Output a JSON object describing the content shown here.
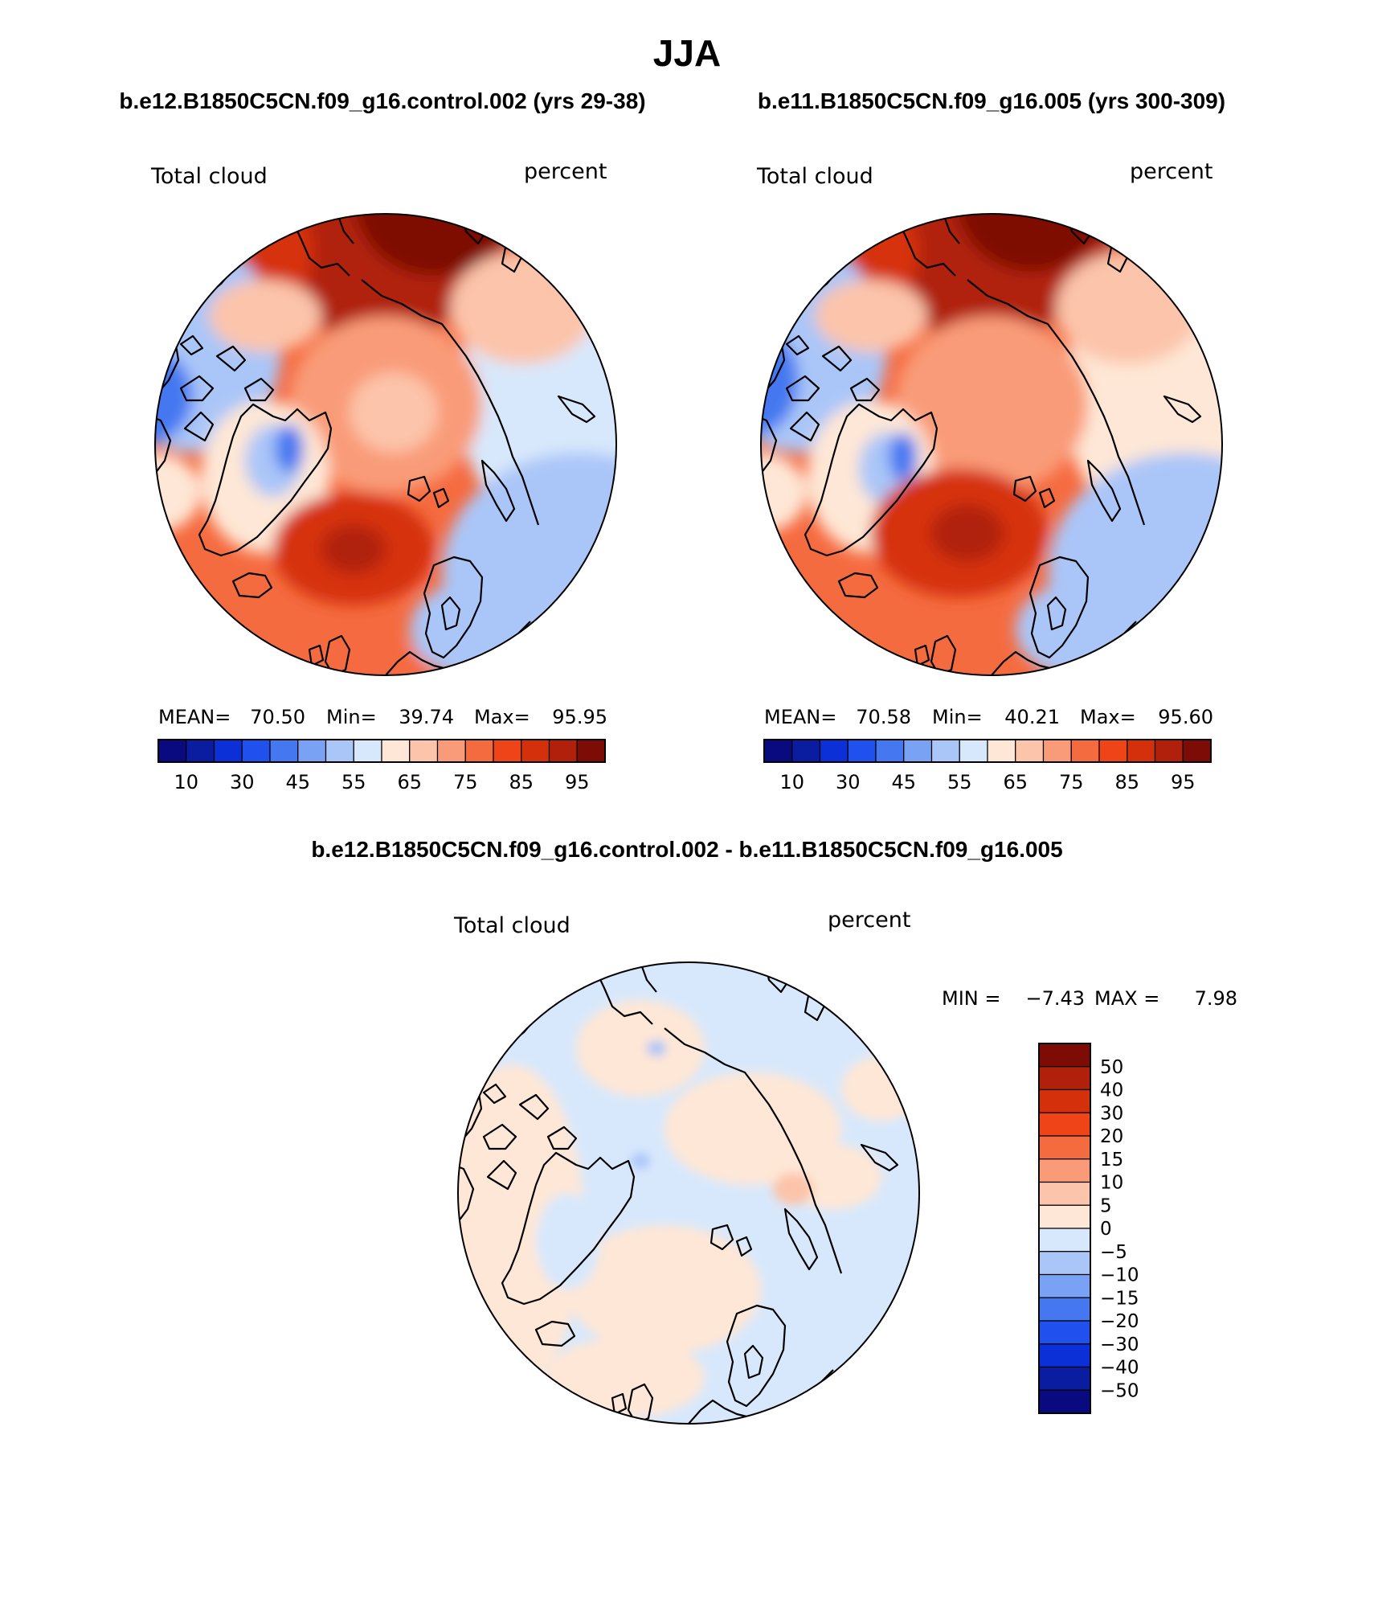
{
  "page_title": "JJA",
  "chart_data": [
    {
      "type": "heatmap",
      "title": "b.e12.B1850C5CN.f09_g16.control.002 (yrs 29-38)",
      "variable": "Total cloud",
      "units": "percent",
      "projection": "north polar stereographic",
      "stats": {
        "mean_label": "MEAN=",
        "mean": "70.50",
        "min_label": "Min=",
        "min": "39.74",
        "max_label": "Max=",
        "max": "95.95"
      },
      "colorbar": {
        "orientation": "horizontal",
        "levels": [
          10,
          20,
          30,
          40,
          45,
          50,
          55,
          60,
          65,
          70,
          75,
          80,
          85,
          90,
          95
        ],
        "tick_labels": [
          "10",
          "30",
          "45",
          "55",
          "65",
          "75",
          "85",
          "95"
        ],
        "colors": [
          "#0a0a80",
          "#0a1ca0",
          "#0b30d8",
          "#2050ee",
          "#4578f0",
          "#7aa2f4",
          "#aac6f8",
          "#d8e8fc",
          "#fee7d6",
          "#fcc4aa",
          "#f99b78",
          "#f56b40",
          "#ef4418",
          "#d5300c",
          "#b0200a",
          "#7e0c06"
        ]
      }
    },
    {
      "type": "heatmap",
      "title": "b.e11.B1850C5CN.f09_g16.005 (yrs 300-309)",
      "variable": "Total cloud",
      "units": "percent",
      "projection": "north polar stereographic",
      "stats": {
        "mean_label": "MEAN=",
        "mean": "70.58",
        "min_label": "Min=",
        "min": "40.21",
        "max_label": "Max=",
        "max": "95.60"
      },
      "colorbar": {
        "orientation": "horizontal",
        "levels": [
          10,
          20,
          30,
          40,
          45,
          50,
          55,
          60,
          65,
          70,
          75,
          80,
          85,
          90,
          95
        ],
        "tick_labels": [
          "10",
          "30",
          "45",
          "55",
          "65",
          "75",
          "85",
          "95"
        ],
        "colors": [
          "#0a0a80",
          "#0a1ca0",
          "#0b30d8",
          "#2050ee",
          "#4578f0",
          "#7aa2f4",
          "#aac6f8",
          "#d8e8fc",
          "#fee7d6",
          "#fcc4aa",
          "#f99b78",
          "#f56b40",
          "#ef4418",
          "#d5300c",
          "#b0200a",
          "#7e0c06"
        ]
      }
    },
    {
      "type": "heatmap",
      "title": "b.e12.B1850C5CN.f09_g16.control.002 - b.e11.B1850C5CN.f09_g16.005",
      "variable": "Total cloud",
      "units": "percent",
      "projection": "north polar stereographic",
      "stats": {
        "min_label": "MIN =",
        "min": "−7.43",
        "max_label": "MAX =",
        "max": "7.98"
      },
      "colorbar": {
        "orientation": "vertical",
        "tick_labels": [
          "50",
          "40",
          "30",
          "20",
          "15",
          "10",
          "5",
          "0",
          "−5",
          "−10",
          "−15",
          "−20",
          "−30",
          "−40",
          "−50"
        ],
        "colors": [
          "#7e0c06",
          "#b0200a",
          "#d5300c",
          "#ef4418",
          "#f56b40",
          "#f99b78",
          "#fcc4aa",
          "#fee7d6",
          "#d8e8fc",
          "#aac6f8",
          "#7aa2f4",
          "#4578f0",
          "#2050ee",
          "#0b30d8",
          "#0a1ca0",
          "#0a0a80"
        ]
      }
    }
  ]
}
